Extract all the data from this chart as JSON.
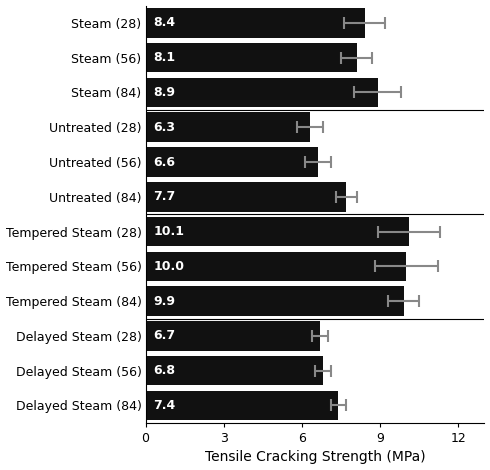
{
  "categories": [
    "Steam (28)",
    "Steam (56)",
    "Steam (84)",
    "Untreated (28)",
    "Untreated (56)",
    "Untreated (84)",
    "Tempered Steam (28)",
    "Tempered Steam (56)",
    "Tempered Steam (84)",
    "Delayed Steam (28)",
    "Delayed Steam (56)",
    "Delayed Steam (84)"
  ],
  "values": [
    8.4,
    8.1,
    8.9,
    6.3,
    6.6,
    7.7,
    10.1,
    10.0,
    9.9,
    6.7,
    6.8,
    7.4
  ],
  "errors": [
    0.8,
    0.6,
    0.9,
    0.5,
    0.5,
    0.4,
    1.2,
    1.2,
    0.6,
    0.3,
    0.3,
    0.3
  ],
  "bar_color": "#111111",
  "error_color": "#888888",
  "text_color": "#ffffff",
  "xlabel": "Tensile Cracking Strength (MPa)",
  "xlim": [
    0,
    13
  ],
  "xticks": [
    0,
    3,
    6,
    9,
    12
  ],
  "bar_height": 0.85,
  "label_fontsize": 9,
  "tick_fontsize": 9,
  "value_fontsize": 9,
  "xlabel_fontsize": 10,
  "figsize": [
    4.9,
    4.7
  ],
  "dpi": 100
}
